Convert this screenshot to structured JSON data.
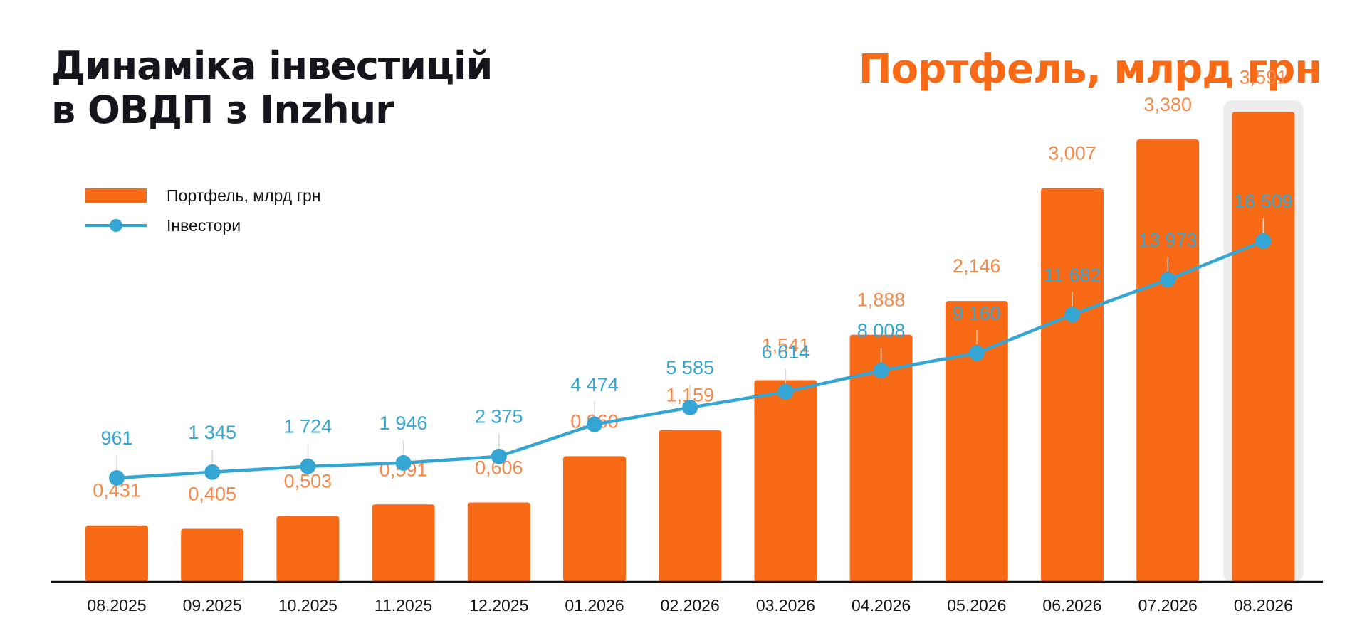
{
  "title": {
    "line1": "Динаміка інвестицій",
    "line2": "в ОВДП з Inzhur"
  },
  "subtitle": "Портфель, млрд грн",
  "legend": {
    "bar_label": "Портфель, млрд грн",
    "line_label": "Інвестори"
  },
  "colors": {
    "bar": "#f96a17",
    "bar_label": "#f5894a",
    "line": "#35a6d4",
    "axis": "#111111",
    "highlight": "#ececec"
  },
  "chart_data": {
    "type": "bar",
    "categories": [
      "08.2025",
      "09.2025",
      "10.2025",
      "11.2025",
      "12.2025",
      "01.2026",
      "02.2026",
      "03.2026",
      "04.2026",
      "05.2026",
      "06.2026",
      "07.2026",
      "08.2026"
    ],
    "series": [
      {
        "name": "Портфель, млрд грн",
        "type": "bar",
        "values": [
          0.431,
          0.405,
          0.503,
          0.591,
          0.606,
          0.96,
          1.159,
          1.541,
          1.888,
          2.146,
          3.007,
          3.38,
          3.591
        ],
        "labels": [
          "0,431",
          "0,405",
          "0,503",
          "0,591",
          "0,606",
          "0,960",
          "1,159",
          "1,541",
          "1,888",
          "2,146",
          "3,007",
          "3,380",
          "3,591"
        ]
      },
      {
        "name": "Інвестори",
        "type": "line",
        "values": [
          961,
          1345,
          1724,
          1946,
          2375,
          4474,
          5585,
          6614,
          8008,
          9160,
          11682,
          13973,
          16509
        ],
        "labels": [
          "961",
          "1 345",
          "1 724",
          "1 946",
          "2 375",
          "4 474",
          "5 585",
          "6 614",
          "8 008",
          "9 160",
          "11 682",
          "13 973",
          "16 509"
        ]
      }
    ],
    "highlighted_category": "08.2026",
    "legend_position": "top-left",
    "grid": false
  }
}
